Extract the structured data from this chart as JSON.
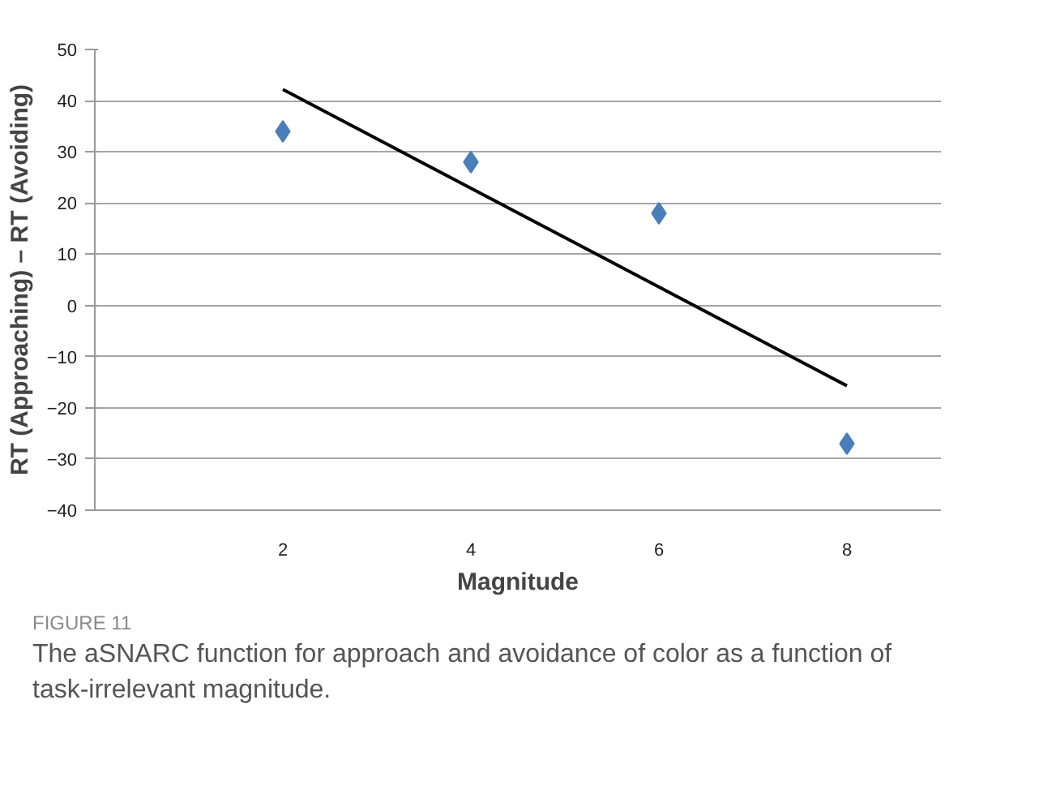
{
  "chart_data": {
    "type": "scatter",
    "xlabel": "Magnitude",
    "ylabel": "RT (Approaching) – RT (Avoiding)",
    "x": [
      2,
      4,
      6,
      8
    ],
    "series": [
      {
        "color": "#4a7ebb",
        "values": [
          34,
          28,
          18,
          -27
        ],
        "marker": "diamond"
      },
      {
        "type": "line",
        "color": "#000000",
        "x": [
          2,
          8
        ],
        "values": [
          42.2,
          -15.7
        ],
        "line_style": "solid"
      }
    ],
    "xlim": [
      0,
      9
    ],
    "xticks": [
      2,
      4,
      6,
      8
    ],
    "ylim": [
      -40,
      50
    ],
    "yticks": [
      -40,
      -30,
      -20,
      -10,
      0,
      10,
      20,
      30,
      40,
      50
    ],
    "grid": "y",
    "annotations": [
      "FIGURE 11",
      "The aSNARC function for approach and avoidance of color as a function of task-irrelevant magnitude."
    ]
  }
}
